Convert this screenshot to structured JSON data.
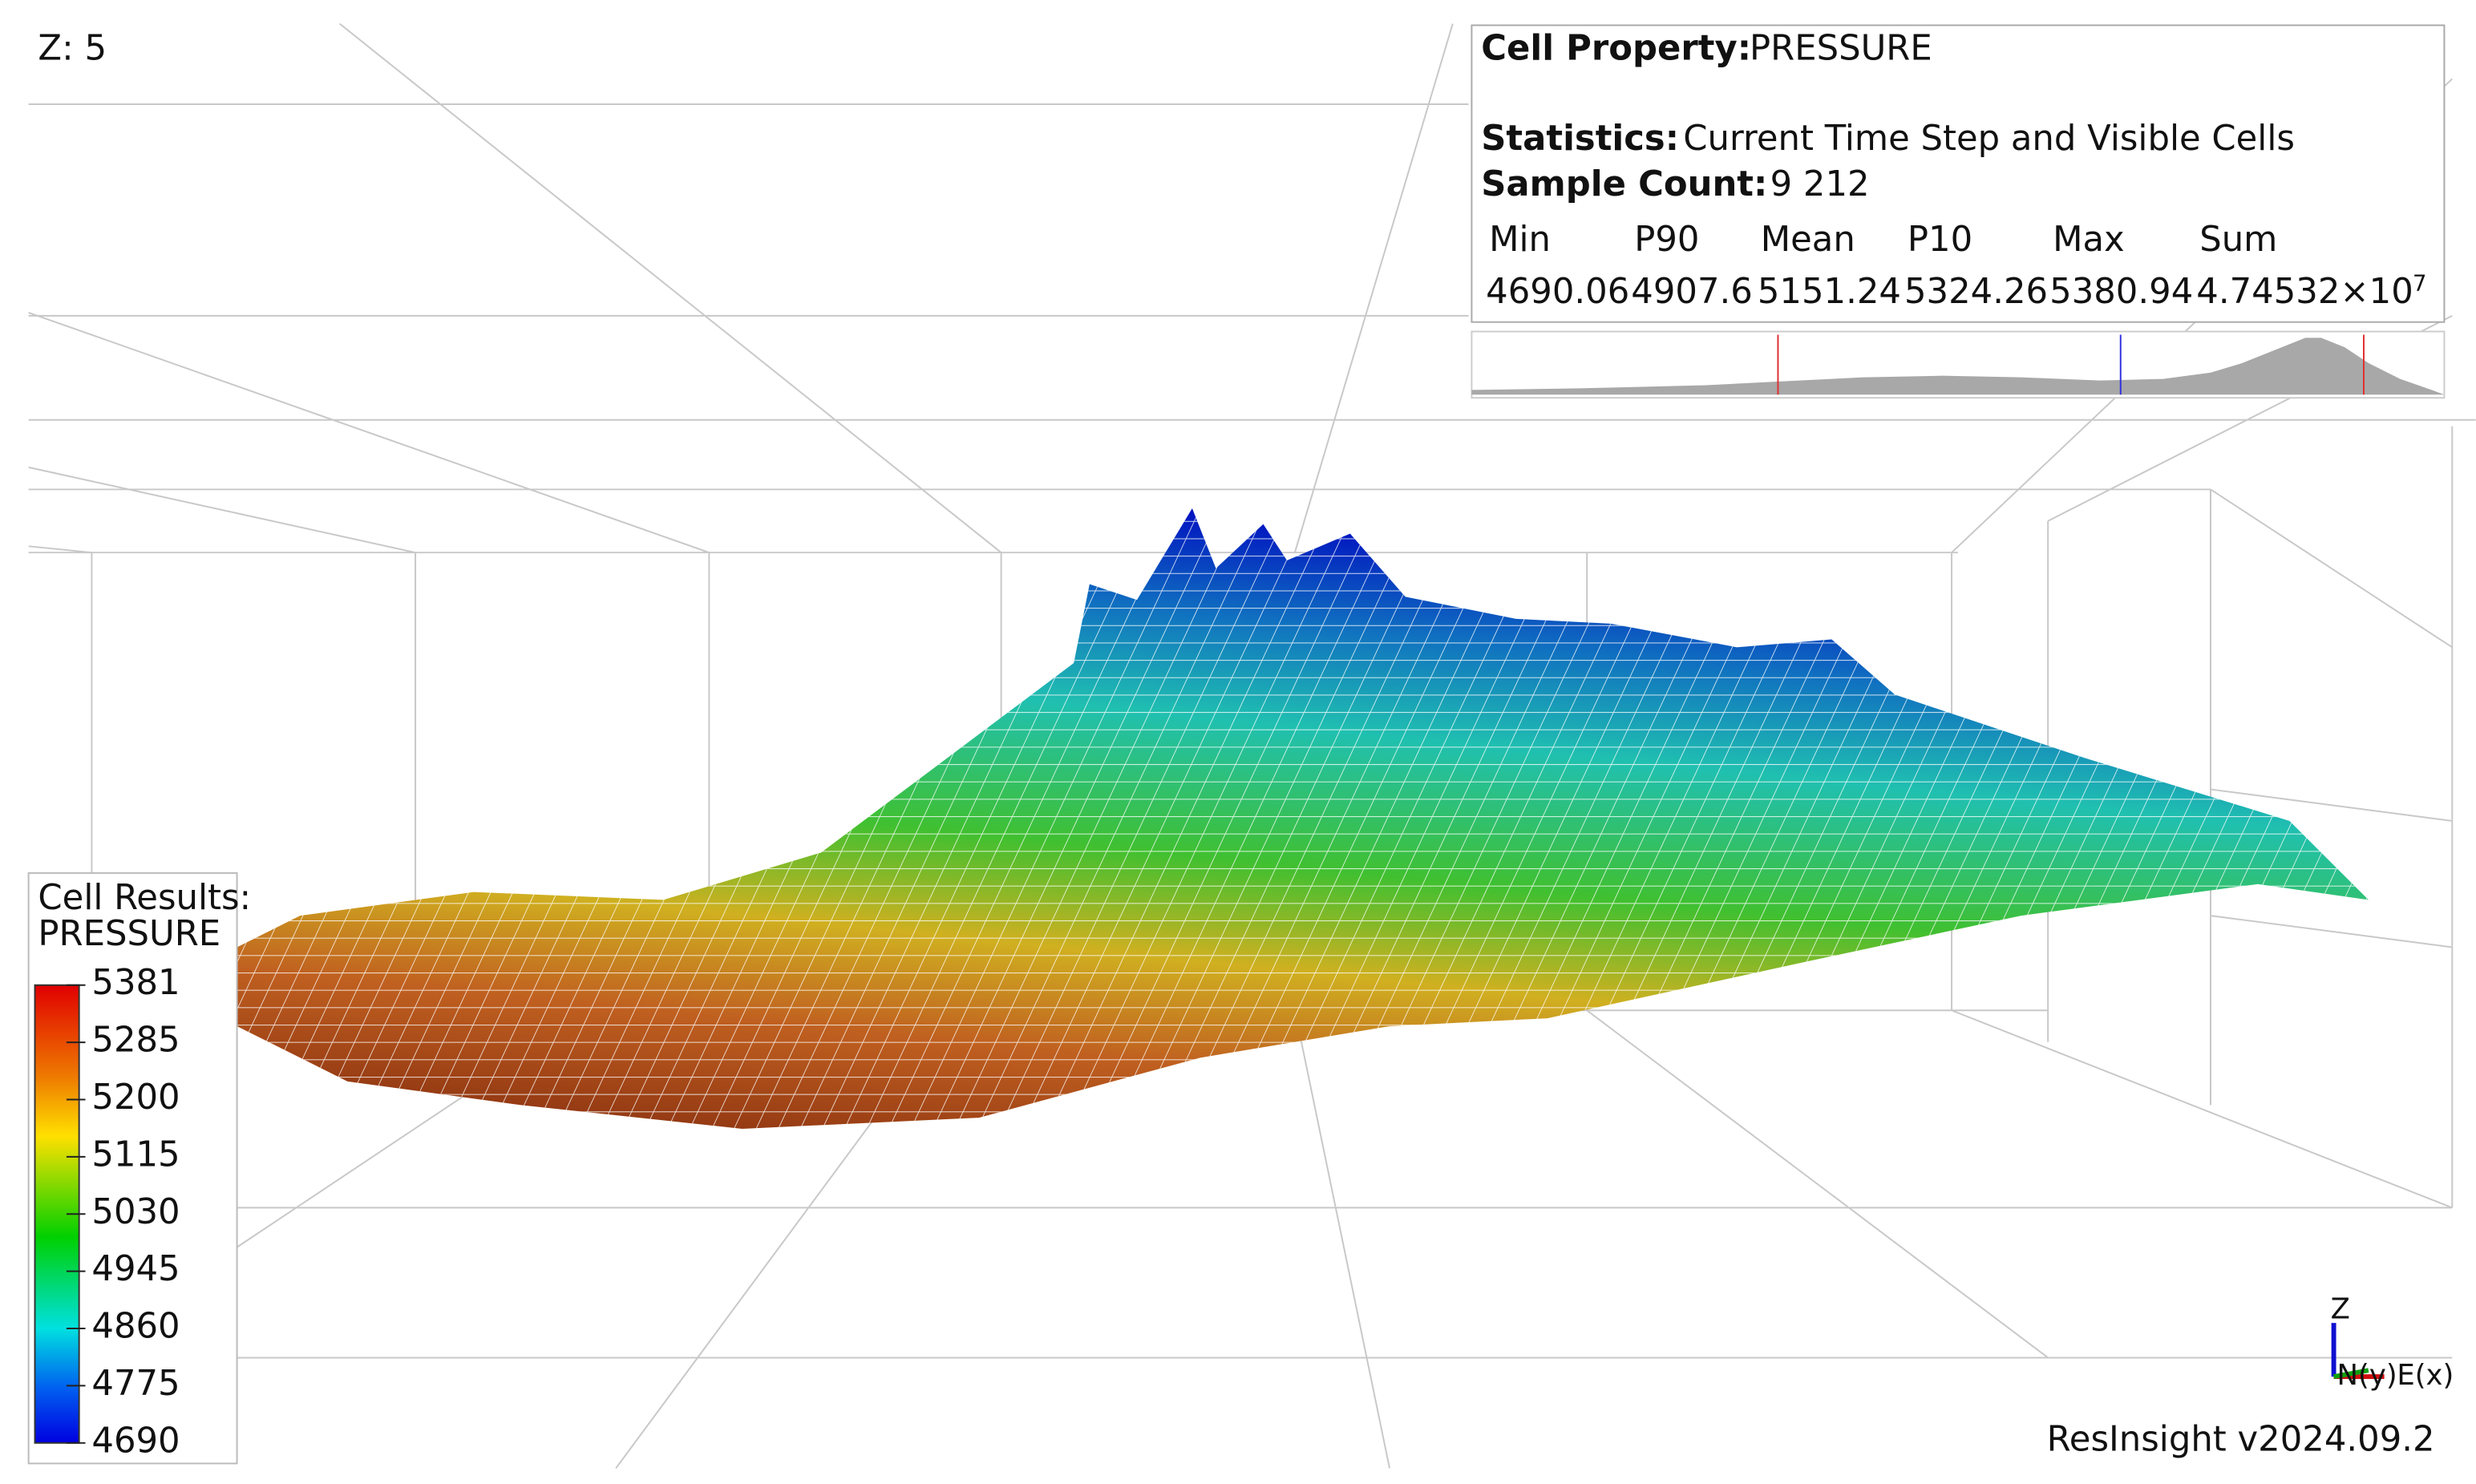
{
  "view": {
    "z_label": "Z: 5",
    "version": "ResInsight v2024.09.2",
    "axes": {
      "z": "Z",
      "n": "N(y)",
      "e": "E(x)"
    }
  },
  "info": {
    "property_label": "Cell Property:",
    "property": "PRESSURE",
    "statistics_label": "Statistics:",
    "statistics": "Current Time Step and Visible Cells",
    "sample_count_label": "Sample Count:",
    "sample_count": "9 212",
    "columns": [
      "Min",
      "P90",
      "Mean",
      "P10",
      "Max",
      "Sum"
    ],
    "values": [
      "4690.06",
      "4907.6",
      "5151.24",
      "5324.26",
      "5380.94",
      "4.74532×10"
    ],
    "sum_exponent": "7"
  },
  "legend": {
    "title": "Cell Results:",
    "property": "PRESSURE",
    "ticks": [
      "5381",
      "5285",
      "5200",
      "5115",
      "5030",
      "4945",
      "4860",
      "4775",
      "4690"
    ]
  }
}
